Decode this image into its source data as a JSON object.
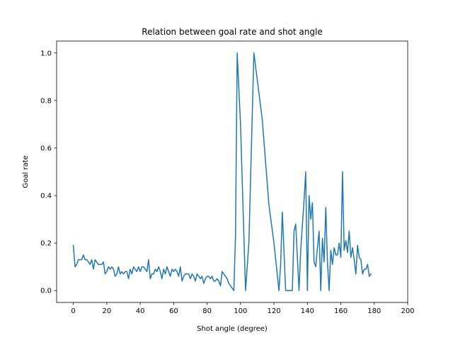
{
  "chart_data": {
    "type": "line",
    "title": "Relation between goal rate and shot angle",
    "xlabel": "Shot angle (degree)",
    "ylabel": "Goal rate",
    "xlim": [
      -10,
      200
    ],
    "ylim": [
      -0.05,
      1.05
    ],
    "xticks": [
      0,
      20,
      40,
      60,
      80,
      100,
      120,
      140,
      160,
      180,
      200
    ],
    "xtick_labels": [
      "0",
      "20",
      "40",
      "60",
      "80",
      "100",
      "120",
      "140",
      "160",
      "180",
      "200"
    ],
    "yticks": [
      0.0,
      0.2,
      0.4,
      0.6,
      0.8,
      1.0
    ],
    "ytick_labels": [
      "0.0",
      "0.2",
      "0.4",
      "0.6",
      "0.8",
      "1.0"
    ],
    "grid": false,
    "series": [
      {
        "color": "#1f77b4",
        "x": [
          0,
          1,
          2,
          3,
          4,
          5,
          6,
          7,
          8,
          9,
          10,
          11,
          12,
          13,
          14,
          15,
          16,
          17,
          18,
          19,
          20,
          21,
          22,
          23,
          24,
          25,
          26,
          27,
          28,
          29,
          30,
          31,
          32,
          33,
          34,
          35,
          36,
          37,
          38,
          39,
          40,
          41,
          42,
          43,
          44,
          45,
          46,
          47,
          48,
          49,
          50,
          51,
          52,
          53,
          54,
          55,
          56,
          57,
          58,
          59,
          60,
          61,
          62,
          63,
          64,
          65,
          66,
          67,
          68,
          69,
          70,
          71,
          72,
          73,
          74,
          75,
          76,
          77,
          78,
          79,
          80,
          81,
          82,
          83,
          84,
          85,
          86,
          87,
          88,
          89,
          90,
          91,
          92,
          93,
          94,
          95,
          96,
          97,
          98,
          100,
          103,
          105,
          108,
          113,
          117,
          120,
          123,
          124,
          125,
          127,
          129,
          131,
          132,
          133,
          135,
          136,
          138,
          139,
          140,
          141,
          142,
          143,
          144,
          145,
          146,
          147,
          148,
          149,
          150,
          151,
          152,
          153,
          154,
          155,
          156,
          157,
          158,
          159,
          160,
          161,
          162,
          163,
          164,
          165,
          166,
          167,
          168,
          169,
          170,
          171,
          172,
          173,
          174,
          175,
          176,
          177,
          178
        ],
        "y": [
          0.19,
          0.1,
          0.11,
          0.13,
          0.13,
          0.13,
          0.15,
          0.13,
          0.13,
          0.12,
          0.11,
          0.13,
          0.09,
          0.13,
          0.12,
          0.11,
          0.11,
          0.11,
          0.12,
          0.07,
          0.08,
          0.1,
          0.09,
          0.1,
          0.09,
          0.06,
          0.07,
          0.1,
          0.07,
          0.08,
          0.07,
          0.08,
          0.08,
          0.05,
          0.09,
          0.07,
          0.1,
          0.09,
          0.08,
          0.1,
          0.08,
          0.1,
          0.1,
          0.09,
          0.08,
          0.13,
          0.05,
          0.07,
          0.07,
          0.09,
          0.08,
          0.1,
          0.08,
          0.05,
          0.09,
          0.07,
          0.1,
          0.08,
          0.06,
          0.09,
          0.08,
          0.09,
          0.08,
          0.06,
          0.1,
          0.04,
          0.06,
          0.07,
          0.07,
          0.07,
          0.05,
          0.07,
          0.06,
          0.04,
          0.07,
          0.06,
          0.05,
          0.06,
          0.03,
          0.05,
          0.06,
          0.06,
          0.05,
          0.06,
          0.04,
          0.04,
          0.05,
          0.04,
          0.02,
          0.08,
          0.07,
          0.06,
          0.05,
          0.03,
          0.02,
          0.01,
          0.0,
          0.23,
          1.0,
          0.7,
          0.0,
          0.2,
          1.0,
          0.72,
          0.36,
          0.2,
          0.0,
          0.11,
          0.33,
          0.0,
          0.0,
          0.0,
          0.25,
          0.28,
          0.0,
          0.17,
          0.38,
          0.5,
          0.0,
          0.4,
          0.3,
          0.37,
          0.12,
          0.1,
          0.18,
          0.25,
          0.0,
          0.22,
          0.12,
          0.35,
          0.12,
          0.0,
          0.17,
          0.11,
          0.18,
          0.15,
          0.15,
          0.2,
          0.14,
          0.5,
          0.17,
          0.21,
          0.16,
          0.25,
          0.14,
          0.18,
          0.13,
          0.07,
          0.19,
          0.14,
          0.13,
          0.07,
          0.09,
          0.09,
          0.11,
          0.06,
          0.07
        ]
      }
    ]
  }
}
